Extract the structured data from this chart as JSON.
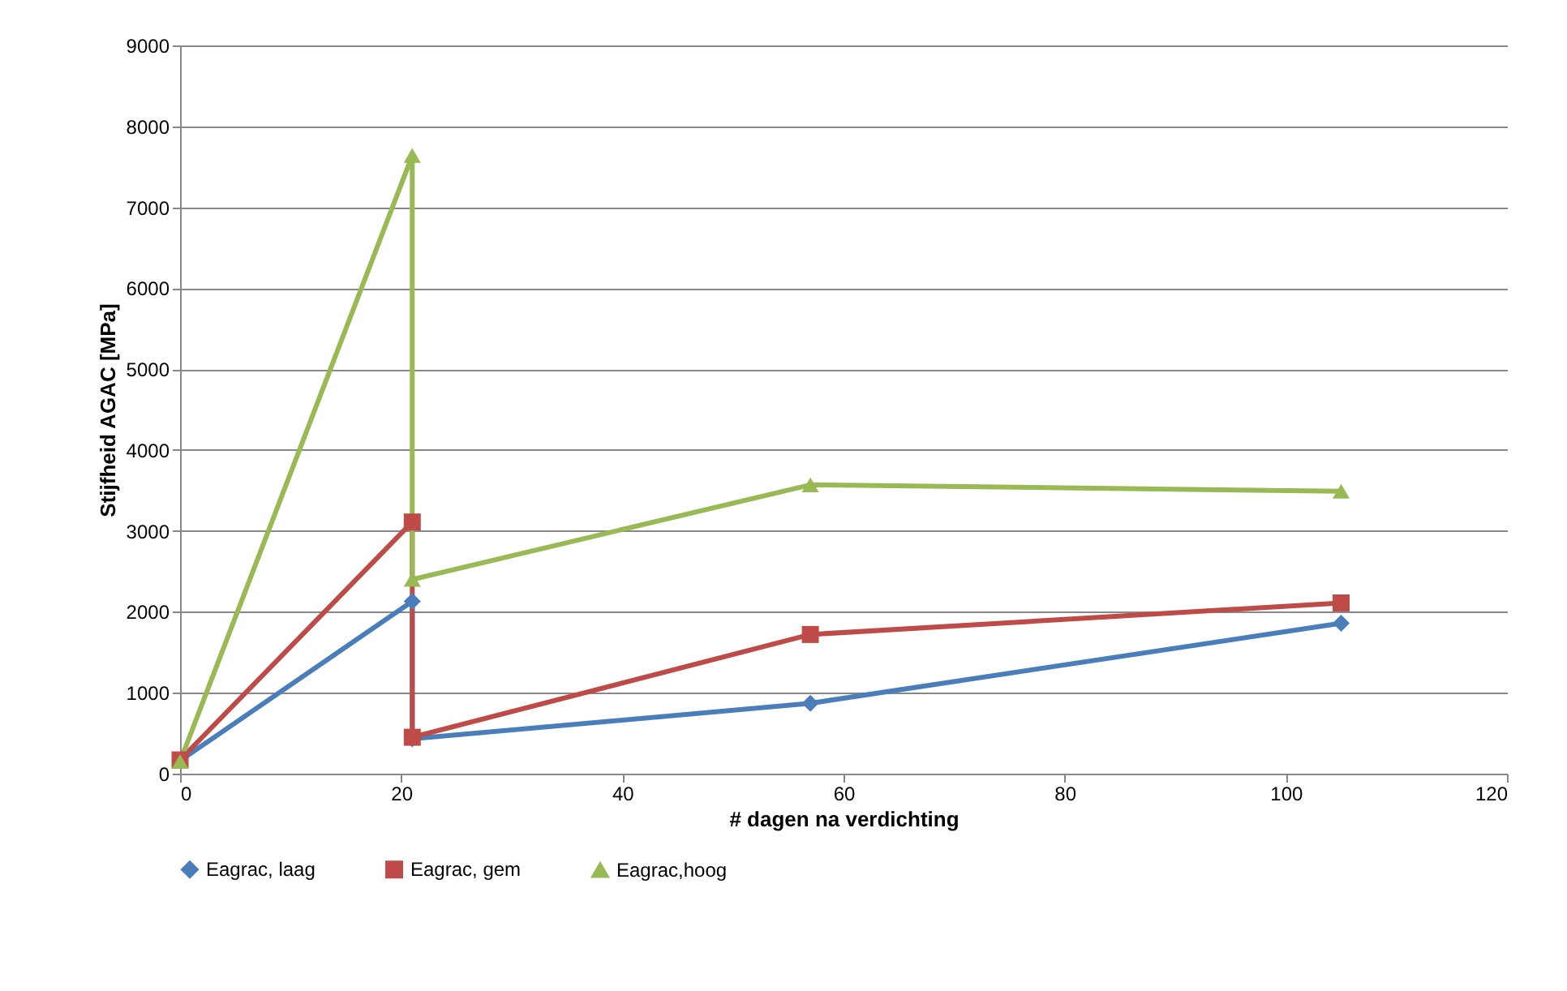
{
  "chart_data": {
    "type": "line",
    "xlabel": "# dagen na verdichting",
    "ylabel": "Stijfheid AGAC [MPa]",
    "x": [
      0,
      21,
      21,
      57,
      105
    ],
    "series": [
      {
        "name": "Eagrac, laag",
        "color": "#4a7ebb",
        "marker": "diamond",
        "values": [
          160,
          2130,
          430,
          870,
          1860
        ]
      },
      {
        "name": "Eagrac, gem",
        "color": "#be4b48",
        "marker": "square",
        "values": [
          170,
          3110,
          450,
          1720,
          2110
        ]
      },
      {
        "name": "Eagrac,hoog",
        "color": "#98b954",
        "marker": "triangle",
        "values": [
          150,
          7640,
          2400,
          3570,
          3490
        ]
      }
    ],
    "xlim": [
      0,
      120
    ],
    "xticks": [
      0,
      20,
      40,
      60,
      80,
      100,
      120
    ],
    "ylim": [
      0,
      9000
    ],
    "yticks": [
      0,
      1000,
      2000,
      3000,
      4000,
      5000,
      6000,
      7000,
      8000,
      9000
    ],
    "grid": "y",
    "legend": "bottom",
    "line_style": "solid"
  }
}
